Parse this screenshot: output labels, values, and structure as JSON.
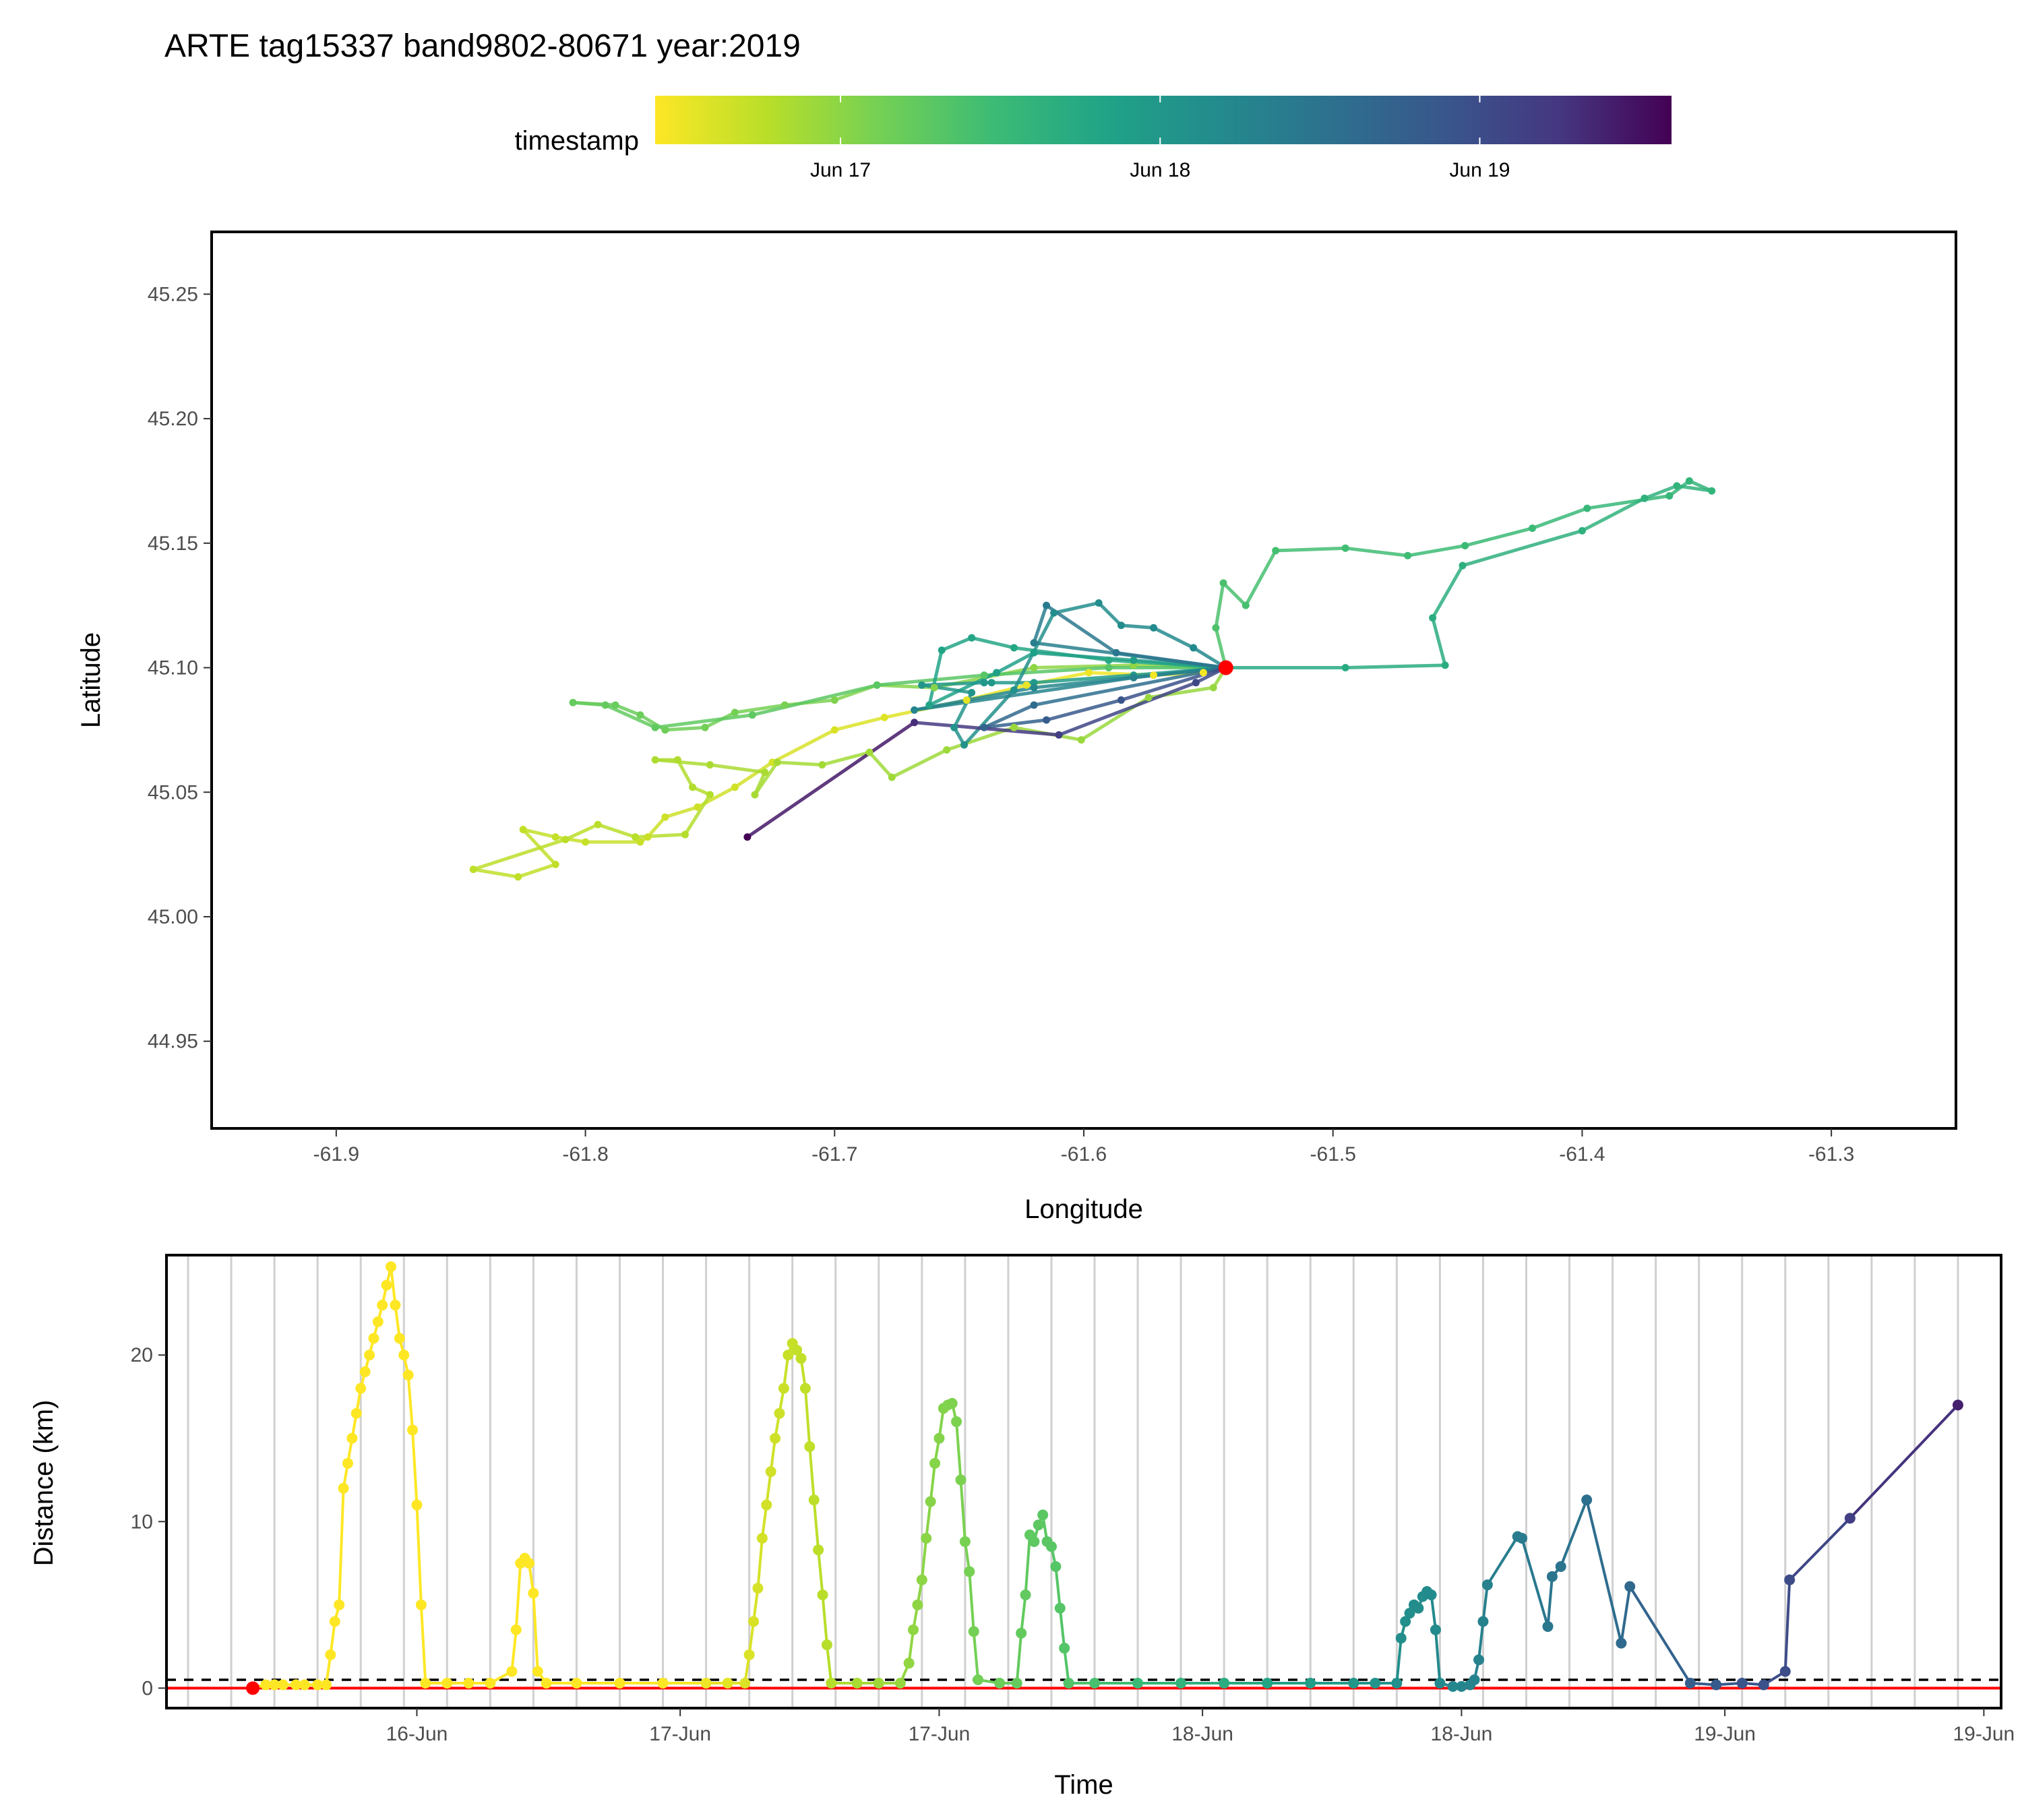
{
  "title": "ARTE tag15337 band9802-80671 year:2019",
  "colors": {
    "viridis_reversed": [
      "#FDE725",
      "#B8DE29",
      "#73D055",
      "#3CBB75",
      "#20A387",
      "#238A8D",
      "#2D708E",
      "#39568C",
      "#453781",
      "#440154"
    ],
    "capture_point": "#FF0000",
    "threshold_line": "#000000",
    "zero_line": "#FF0000",
    "grid": "#D0D0D0"
  },
  "legend": {
    "title": "timestamp",
    "ticks": [
      {
        "label": "Jun 17",
        "day": 17.0
      },
      {
        "label": "Jun 18",
        "day": 18.0
      },
      {
        "label": "Jun 19",
        "day": 19.0
      }
    ],
    "range": [
      16.42,
      19.6
    ]
  },
  "chart_data": [
    {
      "type": "line",
      "panel": "map",
      "xlabel": "Longitude",
      "ylabel": "Latitude",
      "xlim": [
        -61.95,
        -61.25
      ],
      "ylim": [
        44.915,
        45.275
      ],
      "xticks": [
        -61.9,
        -61.8,
        -61.7,
        -61.6,
        -61.5,
        -61.4,
        -61.3
      ],
      "yticks": [
        44.95,
        45.0,
        45.05,
        45.1,
        45.15,
        45.2,
        45.25
      ],
      "xtick_labels": [
        "-61.9",
        "-61.8",
        "-61.7",
        "-61.6",
        "-61.5",
        "-61.4",
        "-61.3"
      ],
      "ytick_labels": [
        "44.95",
        "45.00",
        "45.05",
        "45.10",
        "45.15",
        "45.20",
        "45.25"
      ],
      "capture_site": {
        "lon": -61.543,
        "lat": 45.1
      },
      "track": [
        [
          -61.543,
          45.1,
          16.42
        ],
        [
          -61.552,
          45.098,
          16.45
        ],
        [
          -61.572,
          45.097,
          16.47
        ],
        [
          -61.598,
          45.098,
          16.5
        ],
        [
          -61.623,
          45.093,
          16.53
        ],
        [
          -61.647,
          45.087,
          16.55
        ],
        [
          -61.68,
          45.08,
          16.58
        ],
        [
          -61.7,
          45.075,
          16.6
        ],
        [
          -61.725,
          45.062,
          16.63
        ],
        [
          -61.74,
          45.052,
          16.65
        ],
        [
          -61.755,
          45.044,
          16.66
        ],
        [
          -61.768,
          45.04,
          16.67
        ],
        [
          -61.775,
          45.032,
          16.68
        ],
        [
          -61.778,
          45.03,
          16.69
        ],
        [
          -61.8,
          45.03,
          16.7
        ],
        [
          -61.812,
          45.032,
          16.71
        ],
        [
          -61.825,
          45.035,
          16.72
        ],
        [
          -61.812,
          45.021,
          16.73
        ],
        [
          -61.827,
          45.016,
          16.74
        ],
        [
          -61.845,
          45.019,
          16.75
        ],
        [
          -61.808,
          45.031,
          16.76
        ],
        [
          -61.795,
          45.037,
          16.77
        ],
        [
          -61.78,
          45.032,
          16.78
        ],
        [
          -61.76,
          45.033,
          16.79
        ],
        [
          -61.75,
          45.049,
          16.8
        ],
        [
          -61.757,
          45.052,
          16.81
        ],
        [
          -61.763,
          45.063,
          16.82
        ],
        [
          -61.772,
          45.063,
          16.83
        ],
        [
          -61.75,
          45.061,
          16.84
        ],
        [
          -61.728,
          45.058,
          16.85
        ],
        [
          -61.732,
          45.049,
          16.86
        ],
        [
          -61.723,
          45.062,
          16.87
        ],
        [
          -61.705,
          45.061,
          16.88
        ],
        [
          -61.686,
          45.066,
          16.89
        ],
        [
          -61.677,
          45.056,
          16.9
        ],
        [
          -61.655,
          45.067,
          16.91
        ],
        [
          -61.628,
          45.076,
          16.92
        ],
        [
          -61.601,
          45.071,
          16.93
        ],
        [
          -61.574,
          45.088,
          16.94
        ],
        [
          -61.548,
          45.092,
          16.95
        ],
        [
          -61.543,
          45.1,
          16.96
        ],
        [
          -61.58,
          45.101,
          16.98
        ],
        [
          -61.62,
          45.1,
          17.0
        ],
        [
          -61.66,
          45.092,
          17.03
        ],
        [
          -61.683,
          45.093,
          17.05
        ],
        [
          -61.7,
          45.087,
          17.07
        ],
        [
          -61.72,
          45.085,
          17.1
        ],
        [
          -61.74,
          45.082,
          17.12
        ],
        [
          -61.752,
          45.076,
          17.14
        ],
        [
          -61.768,
          45.075,
          17.16
        ],
        [
          -61.778,
          45.081,
          17.18
        ],
        [
          -61.788,
          45.085,
          17.2
        ],
        [
          -61.805,
          45.086,
          17.21
        ],
        [
          -61.792,
          45.085,
          17.22
        ],
        [
          -61.772,
          45.076,
          17.24
        ],
        [
          -61.733,
          45.081,
          17.26
        ],
        [
          -61.683,
          45.093,
          17.28
        ],
        [
          -61.64,
          45.097,
          17.3
        ],
        [
          -61.59,
          45.1,
          17.32
        ],
        [
          -61.543,
          45.1,
          17.35
        ],
        [
          -61.547,
          45.116,
          17.37
        ],
        [
          -61.544,
          45.134,
          17.39
        ],
        [
          -61.535,
          45.125,
          17.41
        ],
        [
          -61.523,
          45.147,
          17.43
        ],
        [
          -61.495,
          45.148,
          17.45
        ],
        [
          -61.47,
          45.145,
          17.47
        ],
        [
          -61.447,
          45.149,
          17.49
        ],
        [
          -61.42,
          45.156,
          17.51
        ],
        [
          -61.398,
          45.164,
          17.53
        ],
        [
          -61.365,
          45.169,
          17.55
        ],
        [
          -61.357,
          45.175,
          17.57
        ],
        [
          -61.348,
          45.171,
          17.59
        ],
        [
          -61.362,
          45.173,
          17.6
        ],
        [
          -61.375,
          45.168,
          17.62
        ],
        [
          -61.4,
          45.155,
          17.64
        ],
        [
          -61.448,
          45.141,
          17.66
        ],
        [
          -61.46,
          45.12,
          17.68
        ],
        [
          -61.455,
          45.101,
          17.7
        ],
        [
          -61.495,
          45.1,
          17.72
        ],
        [
          -61.543,
          45.1,
          17.74
        ],
        [
          -61.59,
          45.103,
          17.76
        ],
        [
          -61.628,
          45.108,
          17.78
        ],
        [
          -61.645,
          45.112,
          17.8
        ],
        [
          -61.657,
          45.107,
          17.82
        ],
        [
          -61.662,
          45.085,
          17.84
        ],
        [
          -61.635,
          45.098,
          17.86
        ],
        [
          -61.62,
          45.106,
          17.88
        ],
        [
          -61.58,
          45.103,
          17.9
        ],
        [
          -61.543,
          45.1,
          17.92
        ],
        [
          -61.58,
          45.097,
          17.94
        ],
        [
          -61.62,
          45.094,
          17.96
        ],
        [
          -61.637,
          45.094,
          17.98
        ],
        [
          -61.64,
          45.094,
          18.0
        ],
        [
          -61.665,
          45.093,
          18.02
        ],
        [
          -61.645,
          45.09,
          18.04
        ],
        [
          -61.652,
          45.076,
          18.06
        ],
        [
          -61.648,
          45.069,
          18.08
        ],
        [
          -61.628,
          45.091,
          18.1
        ],
        [
          -61.612,
          45.122,
          18.12
        ],
        [
          -61.594,
          45.126,
          18.14
        ],
        [
          -61.585,
          45.117,
          18.16
        ],
        [
          -61.572,
          45.116,
          18.18
        ],
        [
          -61.556,
          45.108,
          18.2
        ],
        [
          -61.543,
          45.1,
          18.22
        ],
        [
          -61.62,
          45.092,
          18.24
        ],
        [
          -61.668,
          45.083,
          18.26
        ],
        [
          -61.58,
          45.096,
          18.28
        ],
        [
          -61.543,
          45.1,
          18.3
        ],
        [
          -61.62,
          45.11,
          18.35
        ],
        [
          -61.615,
          45.125,
          18.4
        ],
        [
          -61.587,
          45.106,
          18.45
        ],
        [
          -61.543,
          45.1,
          18.5
        ],
        [
          -61.62,
          45.085,
          18.6
        ],
        [
          -61.64,
          45.076,
          18.7
        ],
        [
          -61.615,
          45.079,
          18.8
        ],
        [
          -61.585,
          45.087,
          18.9
        ],
        [
          -61.543,
          45.1,
          19.0
        ],
        [
          -61.555,
          45.094,
          19.05
        ],
        [
          -61.61,
          45.073,
          19.15
        ],
        [
          -61.668,
          45.078,
          19.3
        ],
        [
          -61.735,
          45.032,
          19.6
        ]
      ]
    },
    {
      "type": "line",
      "panel": "distance-vs-time",
      "xlabel": "Time",
      "ylabel": "Distance (km)",
      "xlim": [
        15.25,
        19.5
      ],
      "ylim": [
        -1.2,
        26.0
      ],
      "yticks": [
        0,
        10,
        20
      ],
      "ytick_labels": [
        "0",
        "10",
        "20"
      ],
      "xticks": [
        {
          "label": "16-Jun",
          "day": 15.83
        },
        {
          "label": "17-Jun",
          "day": 16.44
        },
        {
          "label": "17-Jun",
          "day": 17.04
        },
        {
          "label": "18-Jun",
          "day": 17.65
        },
        {
          "label": "18-Jun",
          "day": 18.25
        },
        {
          "label": "19-Jun",
          "day": 18.86
        },
        {
          "label": "19-Jun",
          "day": 19.46
        }
      ],
      "grid_step_days": 0.1,
      "threshold_km": 0.5,
      "zero_km": 0,
      "start_point": {
        "day": 15.45,
        "km": 0
      },
      "series": [
        [
          15.45,
          0
        ],
        [
          15.48,
          0.2
        ],
        [
          15.5,
          0.2
        ],
        [
          15.52,
          0.2
        ],
        [
          15.55,
          0.2
        ],
        [
          15.57,
          0.2
        ],
        [
          15.6,
          0.2
        ],
        [
          15.62,
          0.2
        ],
        [
          15.63,
          2
        ],
        [
          15.64,
          4
        ],
        [
          15.65,
          5
        ],
        [
          15.66,
          12
        ],
        [
          15.67,
          13.5
        ],
        [
          15.68,
          15
        ],
        [
          15.69,
          16.5
        ],
        [
          15.7,
          18
        ],
        [
          15.71,
          19
        ],
        [
          15.72,
          20
        ],
        [
          15.73,
          21
        ],
        [
          15.74,
          22
        ],
        [
          15.75,
          23
        ],
        [
          15.76,
          24.2
        ],
        [
          15.77,
          25.3
        ],
        [
          15.78,
          23
        ],
        [
          15.79,
          21
        ],
        [
          15.8,
          20
        ],
        [
          15.81,
          18.8
        ],
        [
          15.82,
          15.5
        ],
        [
          15.83,
          11
        ],
        [
          15.84,
          5
        ],
        [
          15.85,
          0.3
        ],
        [
          15.9,
          0.3
        ],
        [
          15.95,
          0.3
        ],
        [
          16.0,
          0.3
        ],
        [
          16.05,
          1
        ],
        [
          16.06,
          3.5
        ],
        [
          16.07,
          7.5
        ],
        [
          16.08,
          7.8
        ],
        [
          16.09,
          7.5
        ],
        [
          16.1,
          5.7
        ],
        [
          16.11,
          1
        ],
        [
          16.13,
          0.3
        ],
        [
          16.2,
          0.3
        ],
        [
          16.3,
          0.3
        ],
        [
          16.4,
          0.3
        ],
        [
          16.5,
          0.3
        ],
        [
          16.55,
          0.3
        ],
        [
          16.59,
          0.3
        ],
        [
          16.6,
          2
        ],
        [
          16.61,
          4
        ],
        [
          16.62,
          6
        ],
        [
          16.63,
          9
        ],
        [
          16.64,
          11
        ],
        [
          16.65,
          13
        ],
        [
          16.66,
          15
        ],
        [
          16.67,
          16.5
        ],
        [
          16.68,
          18
        ],
        [
          16.69,
          20
        ],
        [
          16.7,
          20.7
        ],
        [
          16.71,
          20.3
        ],
        [
          16.72,
          19.8
        ],
        [
          16.73,
          18
        ],
        [
          16.74,
          14.5
        ],
        [
          16.75,
          11.3
        ],
        [
          16.76,
          8.3
        ],
        [
          16.77,
          5.6
        ],
        [
          16.78,
          2.6
        ],
        [
          16.79,
          0.3
        ],
        [
          16.85,
          0.3
        ],
        [
          16.9,
          0.3
        ],
        [
          16.95,
          0.3
        ],
        [
          16.97,
          1.5
        ],
        [
          16.98,
          3.5
        ],
        [
          16.99,
          5
        ],
        [
          17.0,
          6.5
        ],
        [
          17.01,
          9
        ],
        [
          17.02,
          11.2
        ],
        [
          17.03,
          13.5
        ],
        [
          17.04,
          15
        ],
        [
          17.05,
          16.8
        ],
        [
          17.06,
          17
        ],
        [
          17.07,
          17.1
        ],
        [
          17.08,
          16
        ],
        [
          17.09,
          12.5
        ],
        [
          17.1,
          8.8
        ],
        [
          17.11,
          7
        ],
        [
          17.12,
          3.4
        ],
        [
          17.13,
          0.5
        ],
        [
          17.18,
          0.3
        ],
        [
          17.22,
          0.3
        ],
        [
          17.23,
          3.3
        ],
        [
          17.24,
          5.6
        ],
        [
          17.25,
          9.2
        ],
        [
          17.26,
          8.8
        ],
        [
          17.27,
          9.8
        ],
        [
          17.28,
          10.4
        ],
        [
          17.29,
          8.8
        ],
        [
          17.3,
          8.5
        ],
        [
          17.31,
          7.3
        ],
        [
          17.32,
          4.8
        ],
        [
          17.33,
          2.4
        ],
        [
          17.34,
          0.3
        ],
        [
          17.4,
          0.3
        ],
        [
          17.5,
          0.3
        ],
        [
          17.6,
          0.3
        ],
        [
          17.7,
          0.3
        ],
        [
          17.8,
          0.3
        ],
        [
          17.9,
          0.3
        ],
        [
          18.0,
          0.3
        ],
        [
          18.05,
          0.3
        ],
        [
          18.1,
          0.3
        ],
        [
          18.11,
          3
        ],
        [
          18.12,
          4
        ],
        [
          18.13,
          4.5
        ],
        [
          18.14,
          5
        ],
        [
          18.15,
          4.8
        ],
        [
          18.16,
          5.5
        ],
        [
          18.17,
          5.8
        ],
        [
          18.18,
          5.6
        ],
        [
          18.19,
          3.5
        ],
        [
          18.2,
          0.3
        ],
        [
          18.23,
          0.1
        ],
        [
          18.25,
          0.1
        ],
        [
          18.27,
          0.2
        ],
        [
          18.28,
          0.5
        ],
        [
          18.29,
          1.7
        ],
        [
          18.3,
          4
        ],
        [
          18.31,
          6.2
        ],
        [
          18.38,
          9.1
        ],
        [
          18.39,
          9
        ],
        [
          18.45,
          3.7
        ],
        [
          18.46,
          6.7
        ],
        [
          18.48,
          7.3
        ],
        [
          18.54,
          11.3
        ],
        [
          18.62,
          2.7
        ],
        [
          18.64,
          6.1
        ],
        [
          18.78,
          0.3
        ],
        [
          18.84,
          0.2
        ],
        [
          18.9,
          0.3
        ],
        [
          18.95,
          0.2
        ],
        [
          19.0,
          1
        ],
        [
          19.01,
          6.5
        ],
        [
          19.15,
          10.2
        ],
        [
          19.4,
          17
        ]
      ]
    }
  ]
}
